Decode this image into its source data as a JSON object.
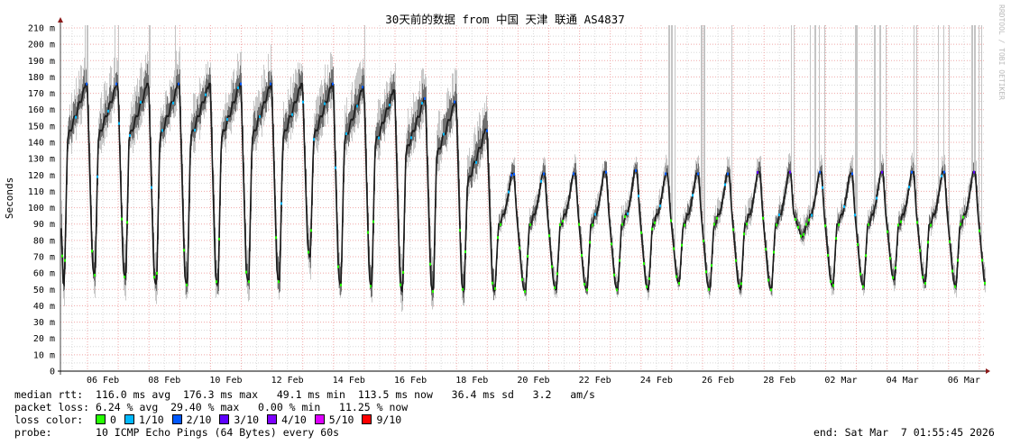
{
  "chart_data": {
    "type": "line",
    "title": "30天前的数据 from 中国 天津 联通 AS4837",
    "ylabel": "Seconds",
    "ylim": [
      0,
      210
    ],
    "yticks": [
      "0",
      "10 m",
      "20 m",
      "30 m",
      "40 m",
      "50 m",
      "60 m",
      "70 m",
      "80 m",
      "90 m",
      "100 m",
      "110 m",
      "120 m",
      "130 m",
      "140 m",
      "150 m",
      "160 m",
      "170 m",
      "180 m",
      "190 m",
      "200 m",
      "210 m"
    ],
    "xticks": [
      "06 Feb",
      "08 Feb",
      "10 Feb",
      "12 Feb",
      "14 Feb",
      "16 Feb",
      "18 Feb",
      "20 Feb",
      "22 Feb",
      "24 Feb",
      "26 Feb",
      "28 Feb",
      "02 Mar",
      "04 Mar",
      "06 Mar"
    ],
    "grid": true,
    "watermark": "RRDTOOL / TOBI OETIKER",
    "unit": "ms",
    "daily_cycles": [
      {
        "date": "05 Feb",
        "trough": 53,
        "peak": 176
      },
      {
        "date": "06 Feb",
        "trough": 59,
        "peak": 176
      },
      {
        "date": "07 Feb",
        "trough": 57,
        "peak": 176
      },
      {
        "date": "08 Feb",
        "trough": 53,
        "peak": 176
      },
      {
        "date": "09 Feb",
        "trough": 53,
        "peak": 176
      },
      {
        "date": "10 Feb",
        "trough": 53,
        "peak": 176
      },
      {
        "date": "11 Feb",
        "trough": 55,
        "peak": 176
      },
      {
        "date": "12 Feb",
        "trough": 55,
        "peak": 176
      },
      {
        "date": "13 Feb",
        "trough": 70,
        "peak": 176
      },
      {
        "date": "14 Feb",
        "trough": 53,
        "peak": 174
      },
      {
        "date": "15 Feb",
        "trough": 52,
        "peak": 172
      },
      {
        "date": "16 Feb",
        "trough": 49,
        "peak": 167
      },
      {
        "date": "17 Feb",
        "trough": 49,
        "peak": 165
      },
      {
        "date": "18 Feb",
        "trough": 49,
        "peak": 148
      },
      {
        "date": "19 Feb",
        "trough": 49,
        "peak": 121
      },
      {
        "date": "20 Feb",
        "trough": 49,
        "peak": 121
      },
      {
        "date": "21 Feb",
        "trough": 50,
        "peak": 121
      },
      {
        "date": "22 Feb",
        "trough": 50,
        "peak": 122
      },
      {
        "date": "23 Feb",
        "trough": 50,
        "peak": 123
      },
      {
        "date": "24 Feb",
        "trough": 50,
        "peak": 121
      },
      {
        "date": "25 Feb",
        "trough": 54,
        "peak": 121
      },
      {
        "date": "26 Feb",
        "trough": 50,
        "peak": 121
      },
      {
        "date": "27 Feb",
        "trough": 50,
        "peak": 122
      },
      {
        "date": "28 Feb",
        "trough": 50,
        "peak": 122
      },
      {
        "date": "01 Mar",
        "trough": 82,
        "peak": 122
      },
      {
        "date": "02 Mar",
        "trough": 52,
        "peak": 121
      },
      {
        "date": "03 Mar",
        "trough": 52,
        "peak": 122
      },
      {
        "date": "04 Mar",
        "trough": 56,
        "peak": 122
      },
      {
        "date": "05 Mar",
        "trough": 54,
        "peak": 122
      },
      {
        "date": "06 Mar",
        "trough": 52,
        "peak": 122
      }
    ],
    "loss_colors": {
      "0": "#26ff00",
      "1/10": "#00b8ff",
      "2/10": "#0059ff",
      "3/10": "#5e00ff",
      "4/10": "#7e00ff",
      "5/10": "#dd00ff",
      "9/10": "#ff0000"
    }
  },
  "legend": {
    "rtt_label": "median rtt:",
    "rtt_values": "116.0 ms avg  176.3 ms max   49.1 ms min  113.5 ms now   36.4 ms sd   3.2   am/s",
    "loss_label": "packet loss:",
    "loss_values": "6.24 % avg  29.40 % max   0.00 % min   11.25 % now",
    "color_label": "loss color:",
    "colors": [
      {
        "label": "0",
        "color": "#26ff00"
      },
      {
        "label": "1/10",
        "color": "#00b8ff"
      },
      {
        "label": "2/10",
        "color": "#0059ff"
      },
      {
        "label": "3/10",
        "color": "#5e00ff"
      },
      {
        "label": "4/10",
        "color": "#7e00ff"
      },
      {
        "label": "5/10",
        "color": "#dd00ff"
      },
      {
        "label": "9/10",
        "color": "#ff0000"
      }
    ],
    "probe_label": "probe:",
    "probe_value": "10 ICMP Echo Pings (64 Bytes) every 60s",
    "end": "end: Sat Mar  7 01:55:45 2026"
  }
}
